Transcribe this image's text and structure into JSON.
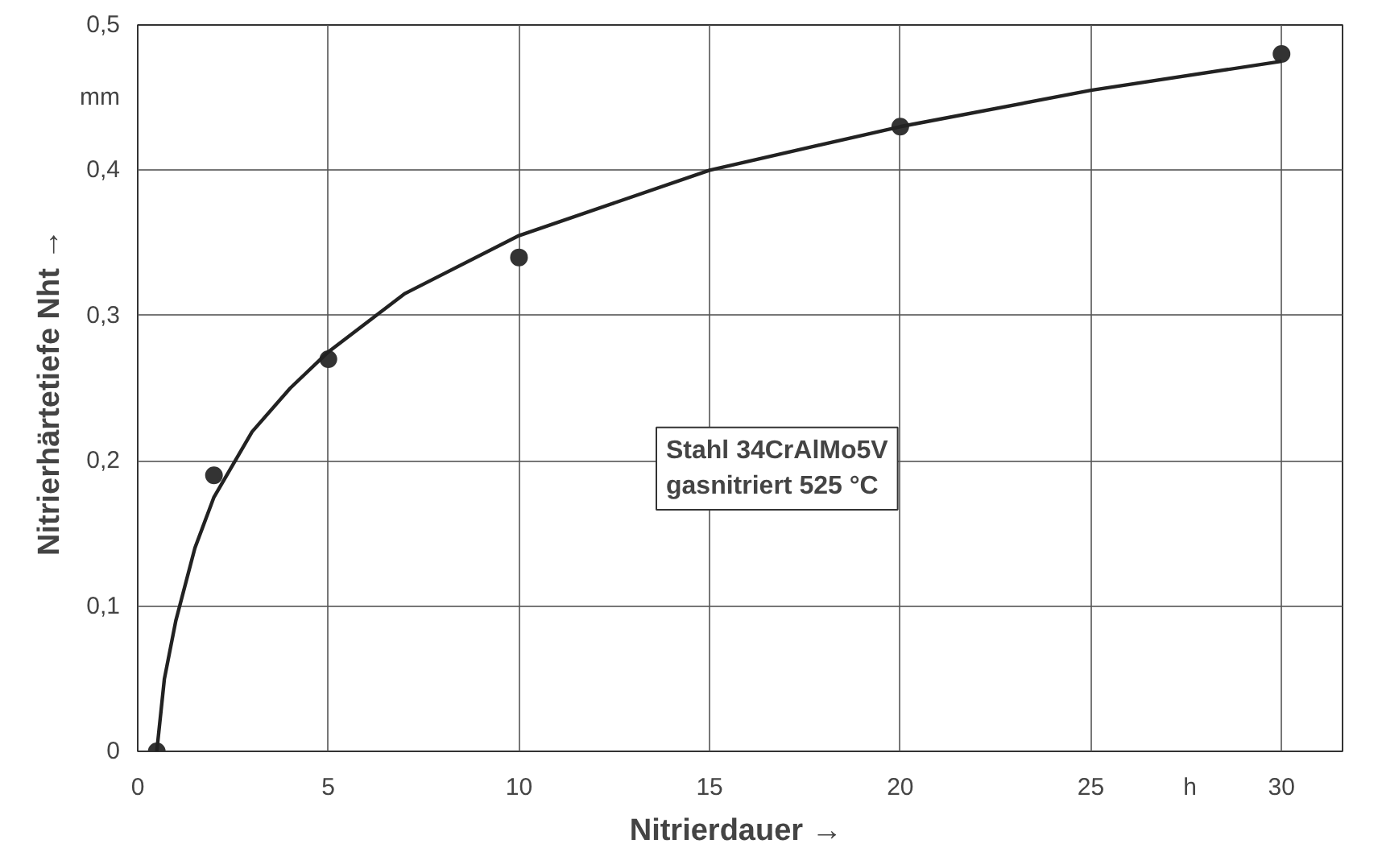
{
  "chart_data": {
    "type": "line",
    "xlabel": "Nitrierdauer  →",
    "ylabel": "Nitrierhärtetiefe Nht  →",
    "xlim": [
      0,
      31.6
    ],
    "ylim": [
      0,
      0.5
    ],
    "xticks": [
      0,
      5,
      10,
      15,
      20,
      25,
      {
        "value": 27.6,
        "label": "h"
      },
      30
    ],
    "yticks": [
      0,
      {
        "value": 0.1,
        "label": "0,1"
      },
      {
        "value": 0.2,
        "label": "0,2"
      },
      {
        "value": 0.3,
        "label": "0,3"
      },
      {
        "value": 0.4,
        "label": "0,4"
      },
      {
        "value": 0.45,
        "label": "mm"
      },
      {
        "value": 0.5,
        "label": "0,5"
      }
    ],
    "grid": true,
    "line_style": "solid",
    "series": [
      {
        "type": "scatter",
        "marker": "circle",
        "color": "#333333",
        "x": [
          0.5,
          2,
          5,
          10,
          20,
          30
        ],
        "values": [
          0,
          0.19,
          0.27,
          0.34,
          0.43,
          0.48
        ]
      },
      {
        "color": "#222222",
        "x": [
          0.5,
          0.7,
          1,
          1.5,
          2,
          3,
          4,
          5,
          7,
          10,
          15,
          20,
          25,
          30
        ],
        "values": [
          0,
          0.05,
          0.09,
          0.14,
          0.175,
          0.22,
          0.25,
          0.275,
          0.315,
          0.355,
          0.4,
          0.43,
          0.455,
          0.475
        ]
      }
    ],
    "annotations": [
      "Stahl 34CrAlMo5V\ngasnitriert 525 °C"
    ]
  }
}
